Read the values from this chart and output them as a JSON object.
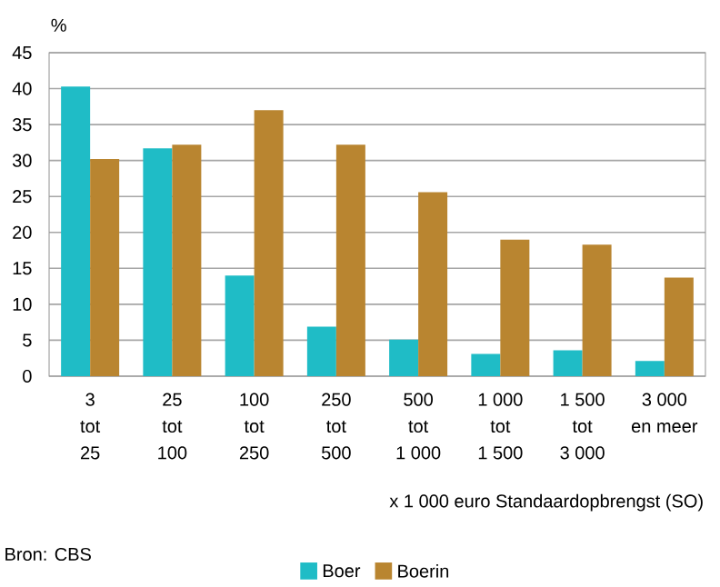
{
  "chart_data": {
    "type": "bar",
    "ylabel": "%",
    "xlabel": "x 1 000 euro Standaardopbrengst (SO)",
    "categories": [
      "3\ntot\n25",
      "25\ntot\n100",
      "100\ntot\n250",
      "250\ntot\n500",
      "500\ntot\n1 000",
      "1 000\ntot\n1 500",
      "1 500\ntot\n3 000",
      "3 000\nen meer"
    ],
    "series": [
      {
        "name": "Boer",
        "color": "#1fbcc6",
        "values": [
          40.3,
          31.7,
          14.0,
          6.9,
          5.1,
          3.1,
          3.6,
          2.1
        ]
      },
      {
        "name": "Boerin",
        "color": "#b98530",
        "values": [
          30.2,
          32.2,
          37.0,
          32.2,
          25.6,
          19.0,
          18.3,
          13.7
        ]
      }
    ],
    "ylim": [
      0,
      45
    ],
    "yticks": [
      0,
      5,
      10,
      15,
      20,
      25,
      30,
      35,
      40,
      45
    ],
    "grid": "y",
    "legend": "bottom",
    "annotations": [
      "Bron: CBS"
    ]
  }
}
